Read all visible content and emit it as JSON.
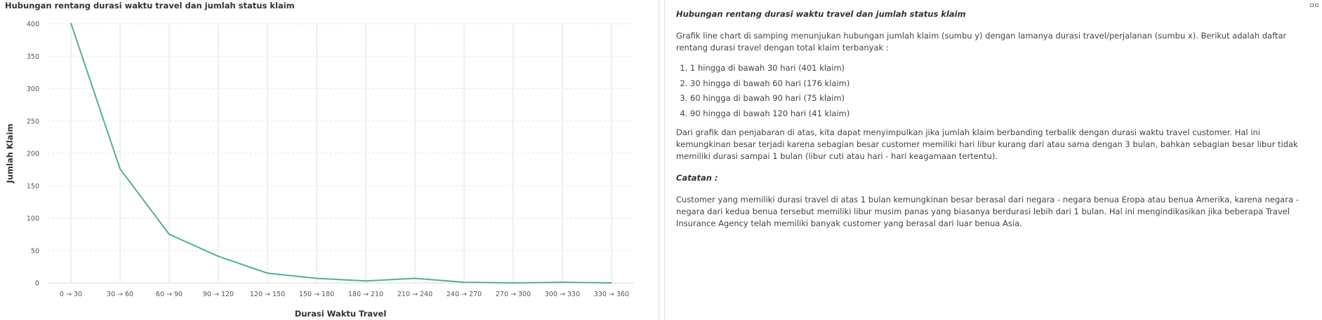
{
  "chart_data": {
    "type": "line",
    "title": "Hubungan rentang durasi waktu travel dan jumlah status klaim",
    "xlabel": "Durasi Waktu Travel",
    "ylabel": "Jumlah Klaim",
    "categories": [
      "0 → 30",
      "30 → 60",
      "60 → 90",
      "90 → 120",
      "120 → 150",
      "150 → 180",
      "180 → 210",
      "210 → 240",
      "240 → 270",
      "270 → 300",
      "300 → 330",
      "330 → 360"
    ],
    "series": [
      {
        "values": [
          401,
          176,
          75,
          41,
          15,
          7,
          3,
          7,
          1,
          0,
          1,
          0
        ]
      }
    ],
    "ylim": [
      0,
      400
    ],
    "yticks": [
      0,
      50,
      100,
      150,
      200,
      250,
      300,
      350,
      400
    ],
    "grid": true,
    "line_color": "#4db38c"
  },
  "description": {
    "title": "Hubungan rentang durasi waktu travel dan jumlah status klaim",
    "intro": "Grafik line chart di samping menunjukan hubungan jumlah klaim (sumbu y) dengan lamanya durasi travel/perjalanan (sumbu x). Berikut adalah daftar rentang durasi travel dengan total klaim terbanyak :",
    "list": [
      "1 hingga di bawah 30 hari (401 klaim)",
      "30 hingga di bawah 60 hari (176 klaim)",
      "60 hingga di bawah 90 hari (75 klaim)",
      "90 hingga di bawah 120 hari (41 klaim)"
    ],
    "conclusion": "Dari grafik dan penjabaran di atas, kita dapat menyimpulkan jika jumlah klaim berbanding terbalik dengan durasi waktu travel customer. Hal ini kemungkinan besar terjadi karena sebagian besar customer memiliki hari libur kurang dari atau sama dengan 3 bulan, bahkan sebagian besar libur tidak memiliki durasi sampai 1 bulan (libur cuti atau hari - hari keagamaan tertentu).",
    "note_heading": "Catatan :",
    "note": "Customer yang memiliki durasi travel di atas 1 bulan kemungkinan besar berasal dari negara - negara benua Eropa atau benua Amerika, karena negara - negara dari kedua benua tersebut memiliki libur musim panas yang biasanya berdurasi lebih dari 1 bulan. Hal ini mengindikasikan jika beberapa Travel Insurance Agency telah memiliki banyak customer yang berasal dari luar benua Asia."
  },
  "icons": {
    "corner": "expand-icon"
  }
}
